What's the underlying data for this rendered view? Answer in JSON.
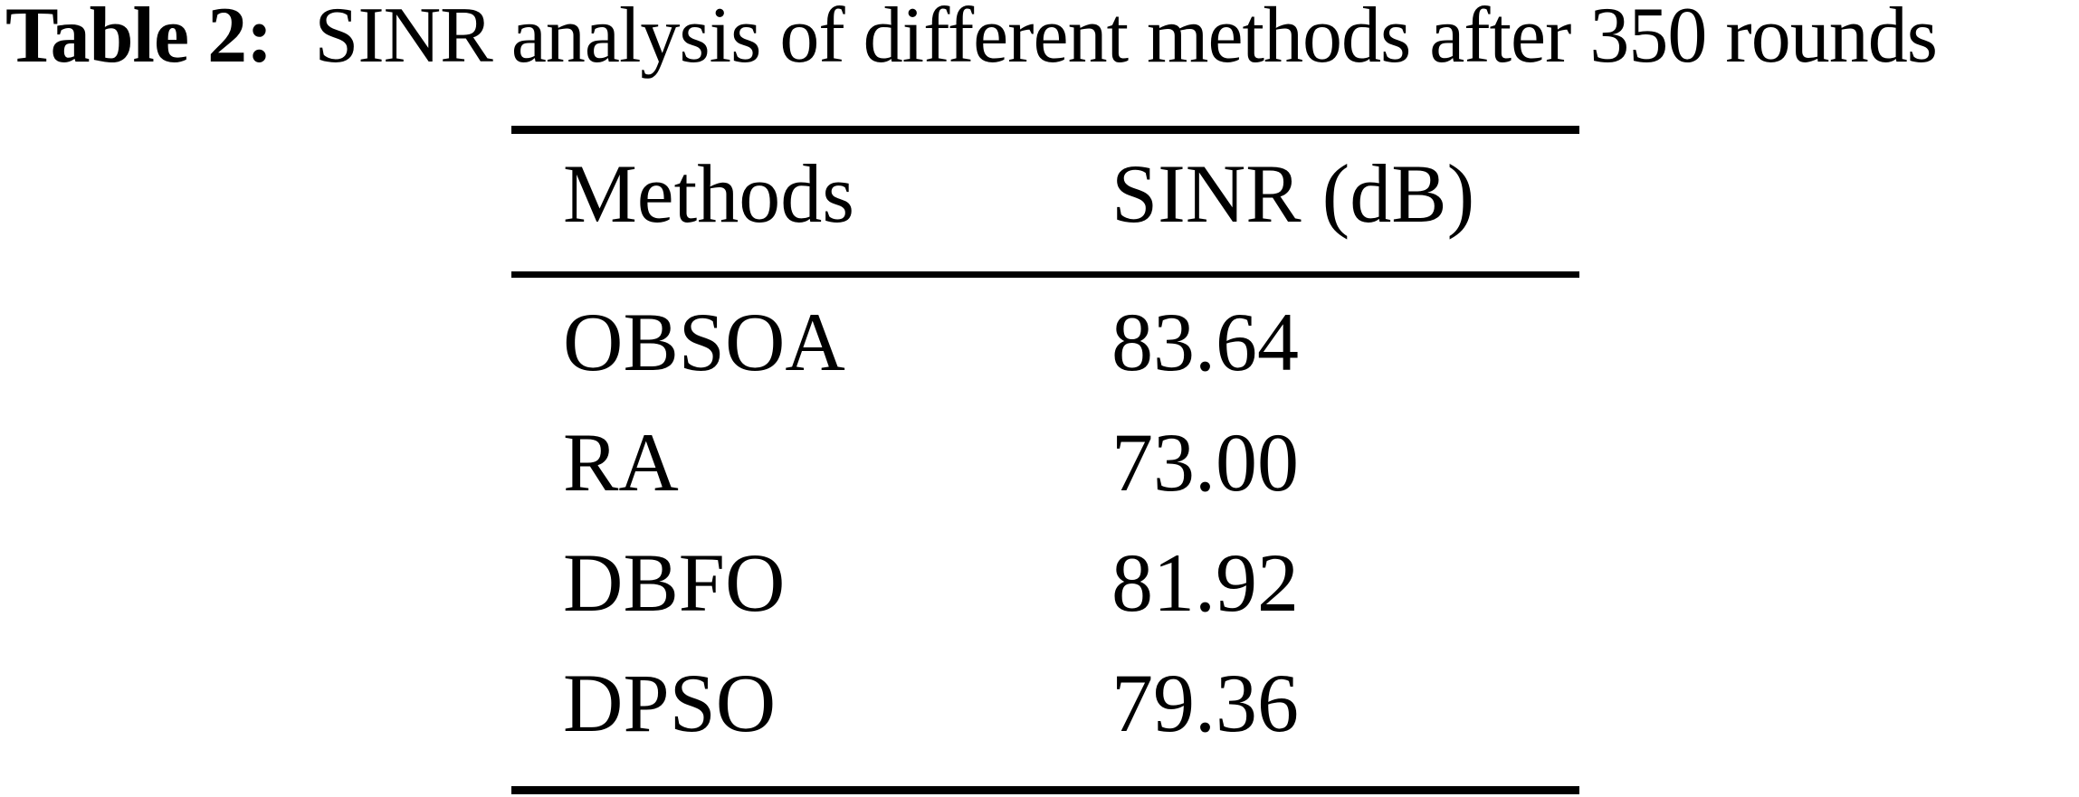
{
  "title": {
    "prefix": "Table 2:",
    "rest": "SINR analysis of different methods after 350 rounds"
  },
  "table": {
    "columns": [
      "Methods",
      "SINR (dB)"
    ],
    "rows": [
      {
        "method": "OBSOA",
        "sinr": "83.64"
      },
      {
        "method": "RA",
        "sinr": "73.00"
      },
      {
        "method": "DBFO",
        "sinr": "81.92"
      },
      {
        "method": "DPSO",
        "sinr": "79.36"
      }
    ]
  },
  "colors": {
    "text": "#000000",
    "background": "#ffffff",
    "rule": "#000000"
  },
  "chart_data": {
    "type": "table",
    "title": "Table 2: SINR analysis of different methods after 350 rounds",
    "columns": [
      "Methods",
      "SINR (dB)"
    ],
    "rows": [
      [
        "OBSOA",
        83.64
      ],
      [
        "RA",
        73.0
      ],
      [
        "DBFO",
        81.92
      ],
      [
        "DPSO",
        79.36
      ]
    ]
  }
}
